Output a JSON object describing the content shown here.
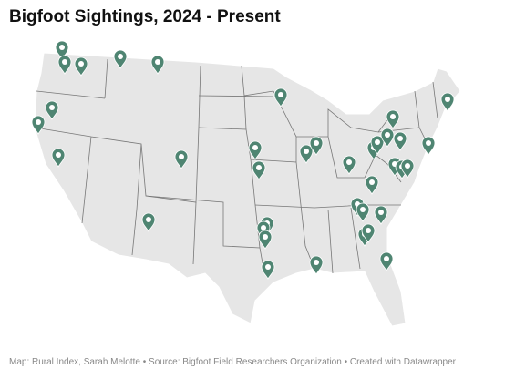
{
  "header": {
    "title": "Bigfoot Sightings, 2024 - Present"
  },
  "footer": {
    "source": "Map: Rural Index, Sarah Melotte • Source: Bigfoot Field Researchers Organization • Created with Datawrapper"
  }
}
